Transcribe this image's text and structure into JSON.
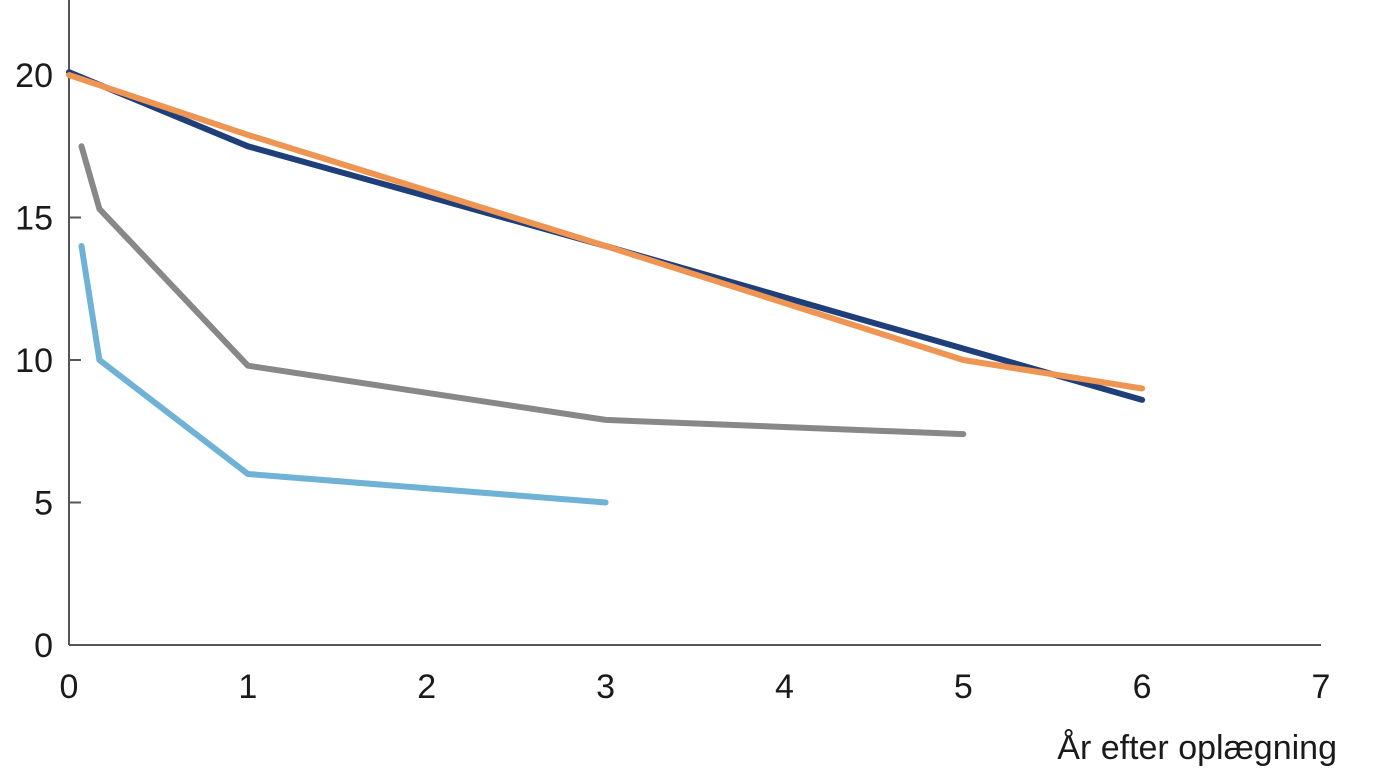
{
  "chart_data": {
    "type": "line",
    "xlabel": "År efter oplægning",
    "ylabel": "",
    "xlim": [
      0,
      7
    ],
    "ylim": [
      0,
      20
    ],
    "x_ticks": [
      "0",
      "1",
      "2",
      "3",
      "4",
      "5",
      "6",
      "7"
    ],
    "y_ticks": [
      "0",
      "5",
      "10",
      "15",
      "20"
    ],
    "grid": false,
    "series": [
      {
        "color": "#1f3f7a",
        "points": [
          [
            0,
            20.1
          ],
          [
            1,
            17.5
          ],
          [
            3,
            14.0
          ],
          [
            6,
            8.6
          ]
        ]
      },
      {
        "color": "#ee9554",
        "points": [
          [
            0,
            20.0
          ],
          [
            1,
            17.9
          ],
          [
            3,
            14.0
          ],
          [
            5,
            10.0
          ],
          [
            6,
            9.0
          ]
        ]
      },
      {
        "color": "#888888",
        "points": [
          [
            0.07,
            17.5
          ],
          [
            0.17,
            15.3
          ],
          [
            1,
            9.8
          ],
          [
            3,
            7.9
          ],
          [
            5,
            7.4
          ]
        ]
      },
      {
        "color": "#6fb2d6",
        "points": [
          [
            0.07,
            14.0
          ],
          [
            0.17,
            10.0
          ],
          [
            1,
            6.0
          ],
          [
            3,
            5.0
          ]
        ]
      }
    ]
  }
}
